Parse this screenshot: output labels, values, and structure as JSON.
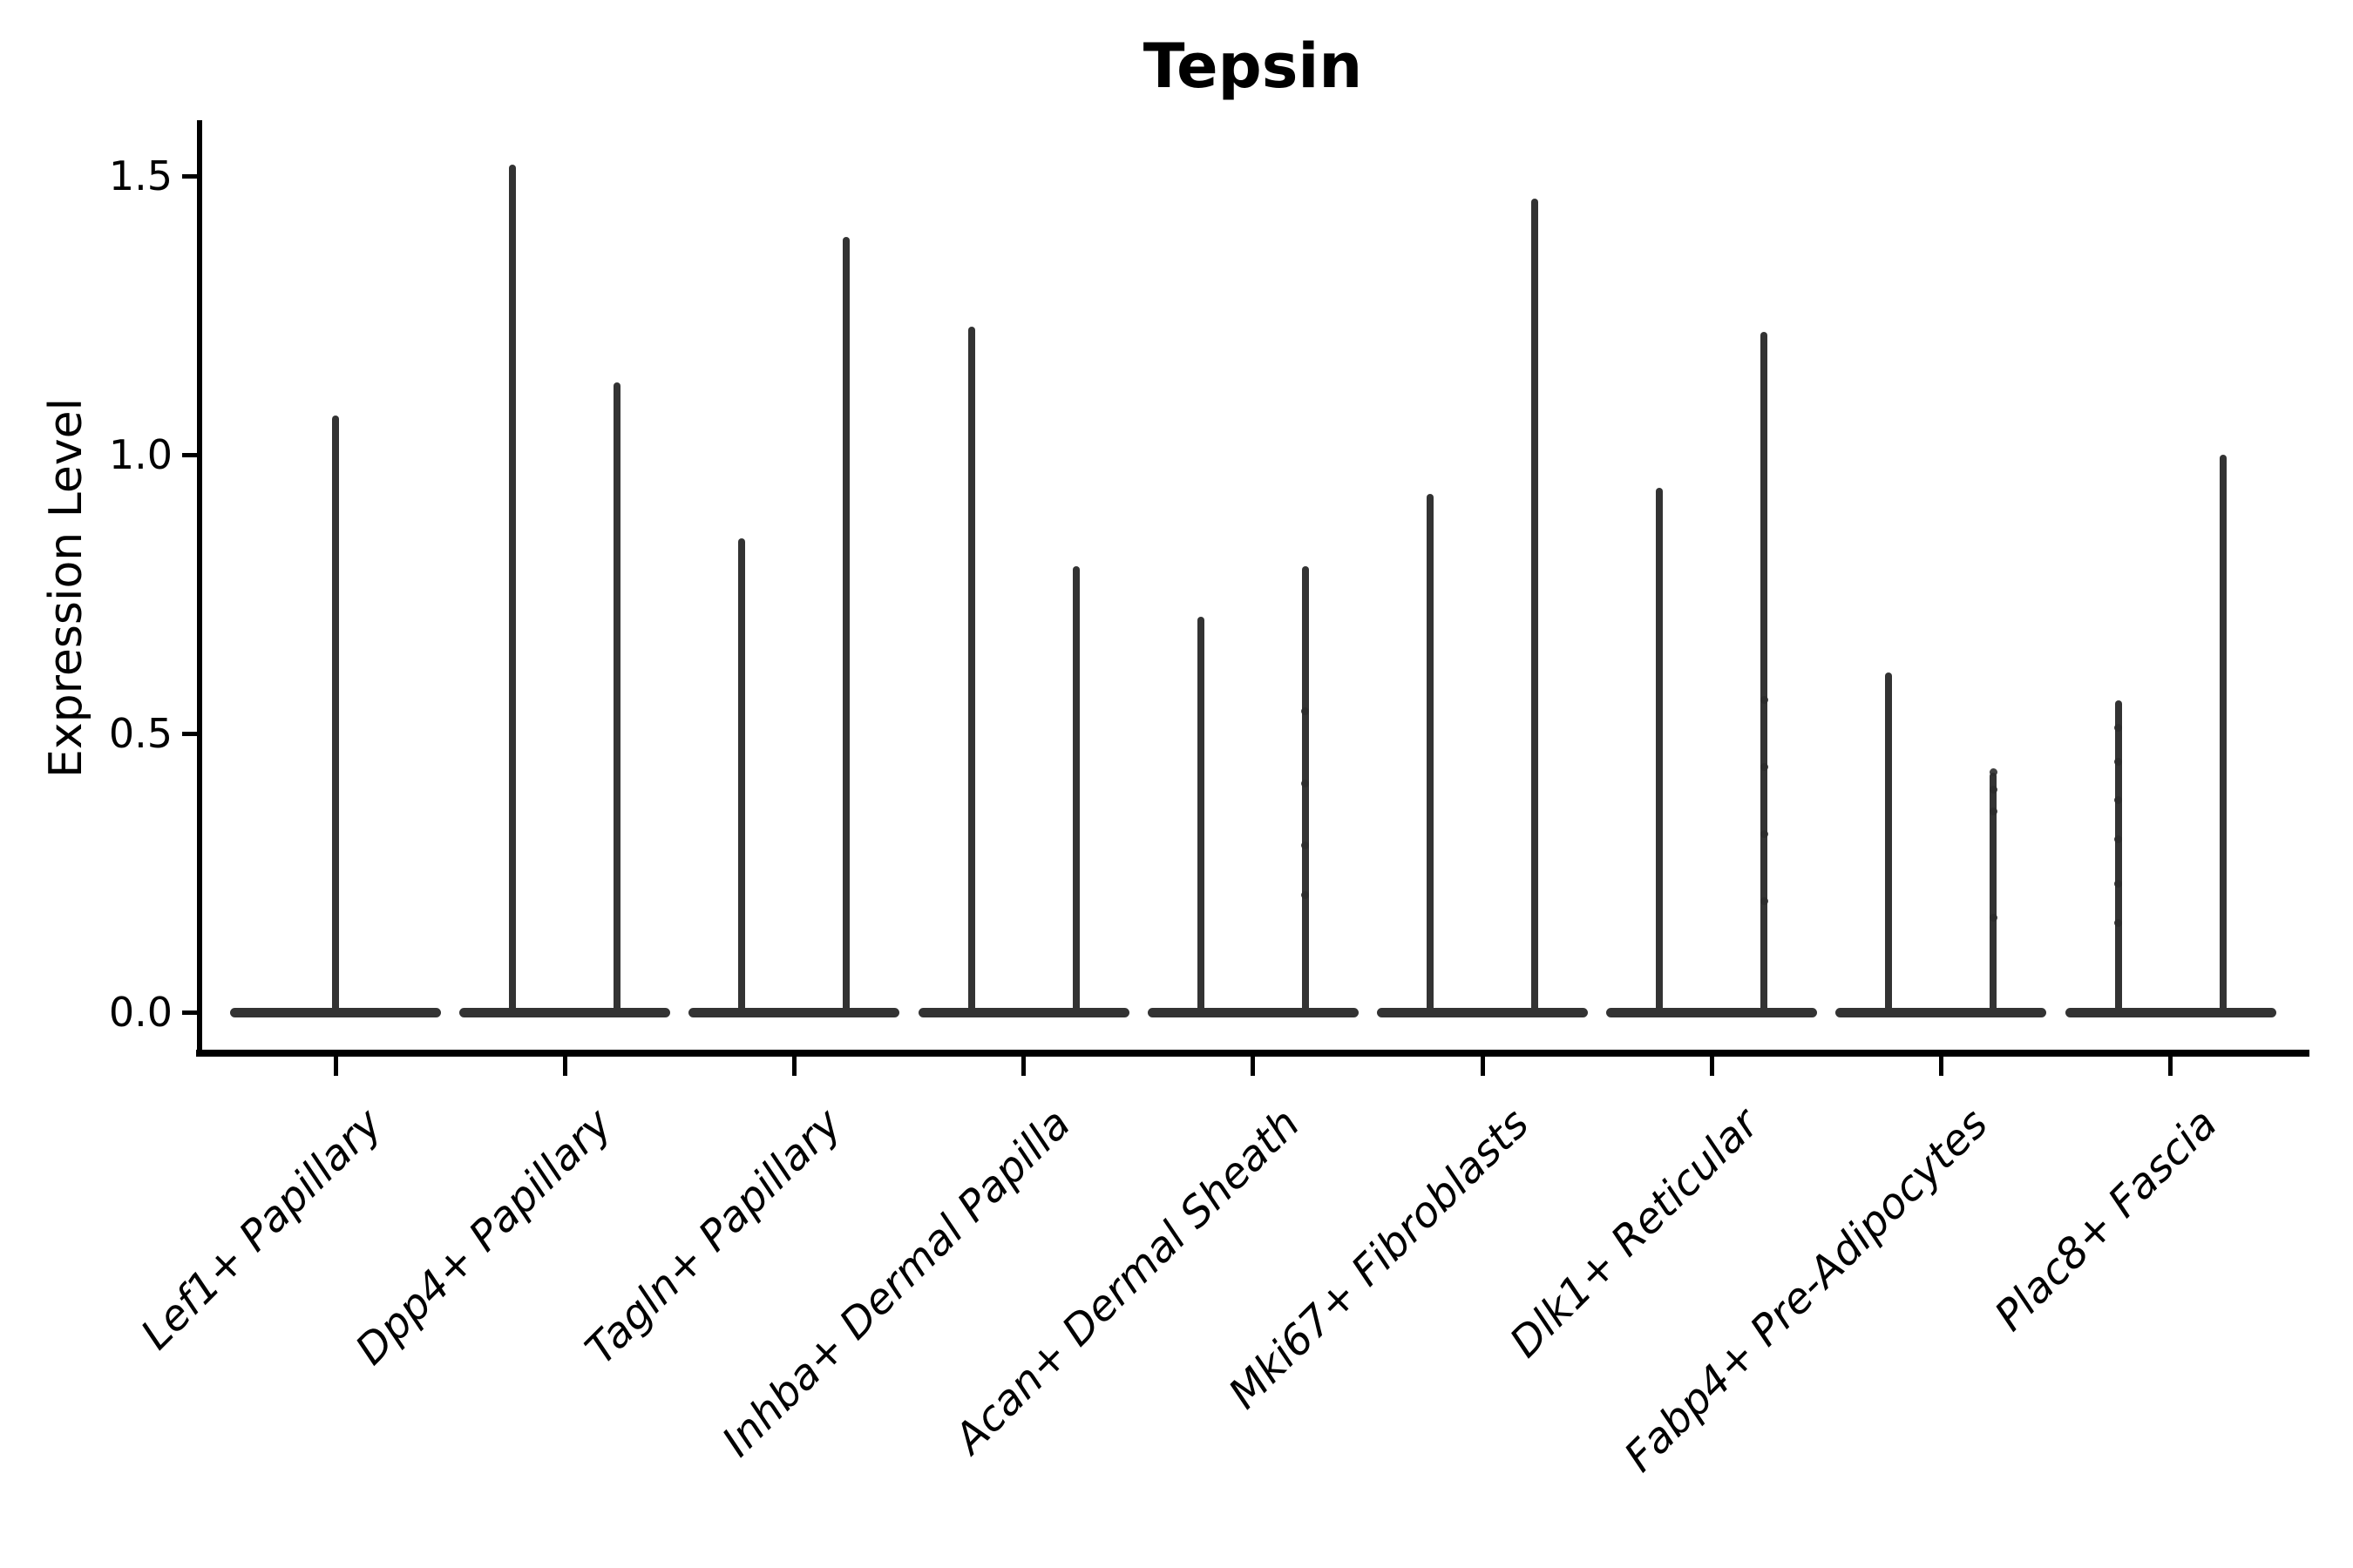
{
  "chart_data": {
    "type": "violin",
    "title": "Tepsin",
    "ylabel": "Expression Level",
    "xlabel": "",
    "ylim": [
      -0.07,
      1.6
    ],
    "yticks": [
      0.0,
      0.5,
      1.0,
      1.5
    ],
    "grid": false,
    "legend": null,
    "baseline_value": 0.0,
    "colors": {
      "violin": "#333333",
      "point": "#2b2b2b",
      "axis": "#000000",
      "text": "#000000",
      "background": "#ffffff"
    },
    "categories": [
      "Lef1+ Papillary",
      "Dpp4+ Papillary",
      "Tagln+ Papillary",
      "Inhba+ Dermal Papilla",
      "Acan+ Dermal Sheath",
      "Mki67+ Fibroblasts",
      "Dlk1+ Reticular",
      "Fabp4+ Pre-Adipocytes",
      "Plac8+ Fascia"
    ],
    "groups": [
      {
        "label": "Lef1+ Papillary",
        "violins": [
          {
            "position": "center",
            "max_expression": 1.07,
            "visible_points": []
          }
        ]
      },
      {
        "label": "Dpp4+ Papillary",
        "violins": [
          {
            "position": "left",
            "max_expression": 1.52,
            "visible_points": []
          },
          {
            "position": "right",
            "max_expression": 1.13,
            "visible_points": []
          }
        ]
      },
      {
        "label": "Tagln+ Papillary",
        "violins": [
          {
            "position": "left",
            "max_expression": 0.85,
            "visible_points": []
          },
          {
            "position": "right",
            "max_expression": 1.39,
            "visible_points": []
          }
        ]
      },
      {
        "label": "Inhba+ Dermal Papilla",
        "violins": [
          {
            "position": "left",
            "max_expression": 1.23,
            "visible_points": []
          },
          {
            "position": "right",
            "max_expression": 0.8,
            "visible_points": []
          }
        ]
      },
      {
        "label": "Acan+ Dermal Sheath",
        "violins": [
          {
            "position": "left",
            "max_expression": 0.71,
            "visible_points": []
          },
          {
            "position": "right",
            "max_expression": 0.8,
            "visible_points": [
              0.54,
              0.41,
              0.3,
              0.21
            ]
          }
        ]
      },
      {
        "label": "Mki67+ Fibroblasts",
        "violins": [
          {
            "position": "left",
            "max_expression": 0.93,
            "visible_points": []
          },
          {
            "position": "right",
            "max_expression": 1.46,
            "visible_points": []
          }
        ]
      },
      {
        "label": "Dlk1+ Reticular",
        "violins": [
          {
            "position": "left",
            "max_expression": 0.94,
            "visible_points": []
          },
          {
            "position": "right",
            "max_expression": 1.22,
            "visible_points": [
              0.56,
              0.44,
              0.32,
              0.2
            ]
          }
        ]
      },
      {
        "label": "Fabp4+ Pre-Adipocytes",
        "violins": [
          {
            "position": "left",
            "max_expression": 0.61,
            "visible_points": []
          },
          {
            "position": "right",
            "max_expression": 0.43,
            "visible_points": [
              0.43,
              0.4,
              0.36,
              0.17
            ]
          }
        ]
      },
      {
        "label": "Plac8+ Fascia",
        "violins": [
          {
            "position": "left",
            "max_expression": 0.56,
            "visible_points": [
              0.51,
              0.45,
              0.38,
              0.31,
              0.23,
              0.16
            ]
          },
          {
            "position": "right",
            "max_expression": 1.0,
            "visible_points": []
          }
        ]
      }
    ]
  }
}
